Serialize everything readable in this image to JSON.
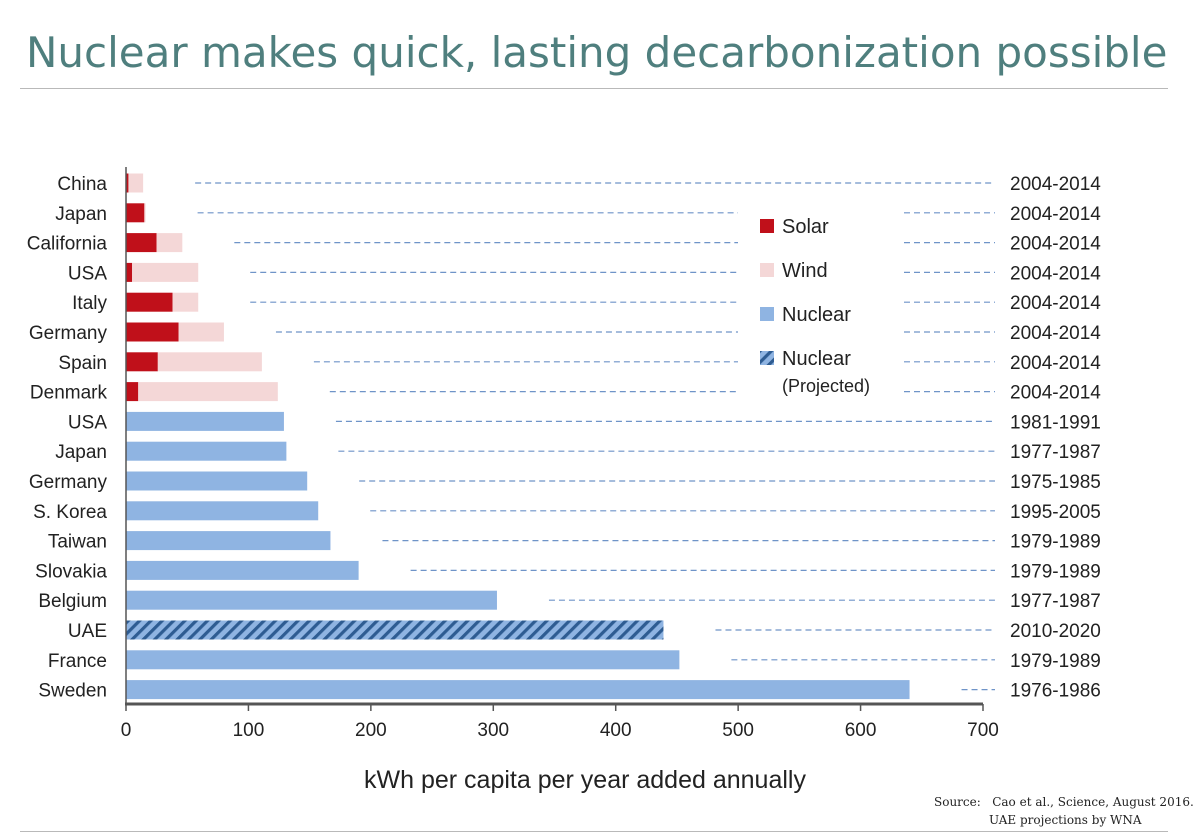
{
  "title": "Nuclear makes quick, lasting decarbonization possible",
  "source": {
    "line1": "Source:   Cao et al., Science, August 2016.",
    "line2": "UAE projections by WNA"
  },
  "colors": {
    "solar": "#c0101a",
    "wind": "#f4d7d7",
    "nuclear": "#8fb4e2",
    "nuclear_projected": "#2e5c92",
    "title": "#4f7f7e",
    "leader": "#6f94c8"
  },
  "chart_data": {
    "type": "bar",
    "orientation": "horizontal",
    "stacked": true,
    "xlabel": "kWh per capita per year added annually",
    "xlim": [
      0,
      700
    ],
    "xticks": [
      0,
      100,
      200,
      300,
      400,
      500,
      600,
      700
    ],
    "grid": false,
    "legend_position": "upper-right",
    "legend": [
      {
        "key": "solar",
        "label": "Solar"
      },
      {
        "key": "wind",
        "label": "Wind"
      },
      {
        "key": "nuclear",
        "label": "Nuclear"
      },
      {
        "key": "nuclear_projected",
        "label": "Nuclear",
        "sublabel": "(Projected)"
      }
    ],
    "rows": [
      {
        "label": "China",
        "period": "2004-2014",
        "solar": 2,
        "wind": 12,
        "nuclear": 0,
        "nuclear_projected": 0
      },
      {
        "label": "Japan",
        "period": "2004-2014",
        "solar": 15,
        "wind": 1,
        "nuclear": 0,
        "nuclear_projected": 0
      },
      {
        "label": "California",
        "period": "2004-2014",
        "solar": 25,
        "wind": 21,
        "nuclear": 0,
        "nuclear_projected": 0
      },
      {
        "label": "USA",
        "period": "2004-2014",
        "solar": 5,
        "wind": 54,
        "nuclear": 0,
        "nuclear_projected": 0
      },
      {
        "label": "Italy",
        "period": "2004-2014",
        "solar": 38,
        "wind": 21,
        "nuclear": 0,
        "nuclear_projected": 0
      },
      {
        "label": "Germany",
        "period": "2004-2014",
        "solar": 43,
        "wind": 37,
        "nuclear": 0,
        "nuclear_projected": 0
      },
      {
        "label": "Spain",
        "period": "2004-2014",
        "solar": 26,
        "wind": 85,
        "nuclear": 0,
        "nuclear_projected": 0
      },
      {
        "label": "Denmark",
        "period": "2004-2014",
        "solar": 10,
        "wind": 114,
        "nuclear": 0,
        "nuclear_projected": 0
      },
      {
        "label": "USA",
        "period": "1981-1991",
        "solar": 0,
        "wind": 0,
        "nuclear": 129,
        "nuclear_projected": 0
      },
      {
        "label": "Japan",
        "period": "1977-1987",
        "solar": 0,
        "wind": 0,
        "nuclear": 131,
        "nuclear_projected": 0
      },
      {
        "label": "Germany",
        "period": "1975-1985",
        "solar": 0,
        "wind": 0,
        "nuclear": 148,
        "nuclear_projected": 0
      },
      {
        "label": "S. Korea",
        "period": "1995-2005",
        "solar": 0,
        "wind": 0,
        "nuclear": 157,
        "nuclear_projected": 0
      },
      {
        "label": "Taiwan",
        "period": "1979-1989",
        "solar": 0,
        "wind": 0,
        "nuclear": 167,
        "nuclear_projected": 0
      },
      {
        "label": "Slovakia",
        "period": "1979-1989",
        "solar": 0,
        "wind": 0,
        "nuclear": 190,
        "nuclear_projected": 0
      },
      {
        "label": "Belgium",
        "period": "1977-1987",
        "solar": 0,
        "wind": 0,
        "nuclear": 303,
        "nuclear_projected": 0
      },
      {
        "label": "UAE",
        "period": "2010-2020",
        "solar": 0,
        "wind": 0,
        "nuclear": 0,
        "nuclear_projected": 439
      },
      {
        "label": "France",
        "period": "1979-1989",
        "solar": 0,
        "wind": 0,
        "nuclear": 452,
        "nuclear_projected": 0
      },
      {
        "label": "Sweden",
        "period": "1976-1986",
        "solar": 0,
        "wind": 0,
        "nuclear": 640,
        "nuclear_projected": 0
      }
    ]
  }
}
